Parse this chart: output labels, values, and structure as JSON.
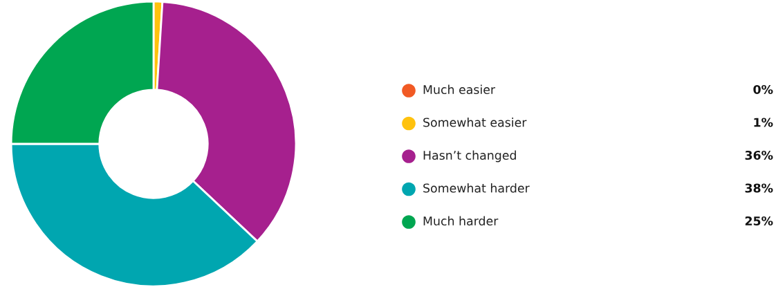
{
  "chart_data": {
    "type": "donut",
    "categories": [
      "Much easier",
      "Somewhat easier",
      "Hasn’t changed",
      "Somewhat harder",
      "Much harder"
    ],
    "values": [
      0,
      1,
      36,
      38,
      25
    ],
    "colors": [
      "#f15a24",
      "#ffc20e",
      "#a6208e",
      "#00a6b0",
      "#00a651"
    ],
    "value_labels": [
      "0%",
      "1%",
      "36%",
      "38%",
      "25%"
    ],
    "legend": "right"
  }
}
